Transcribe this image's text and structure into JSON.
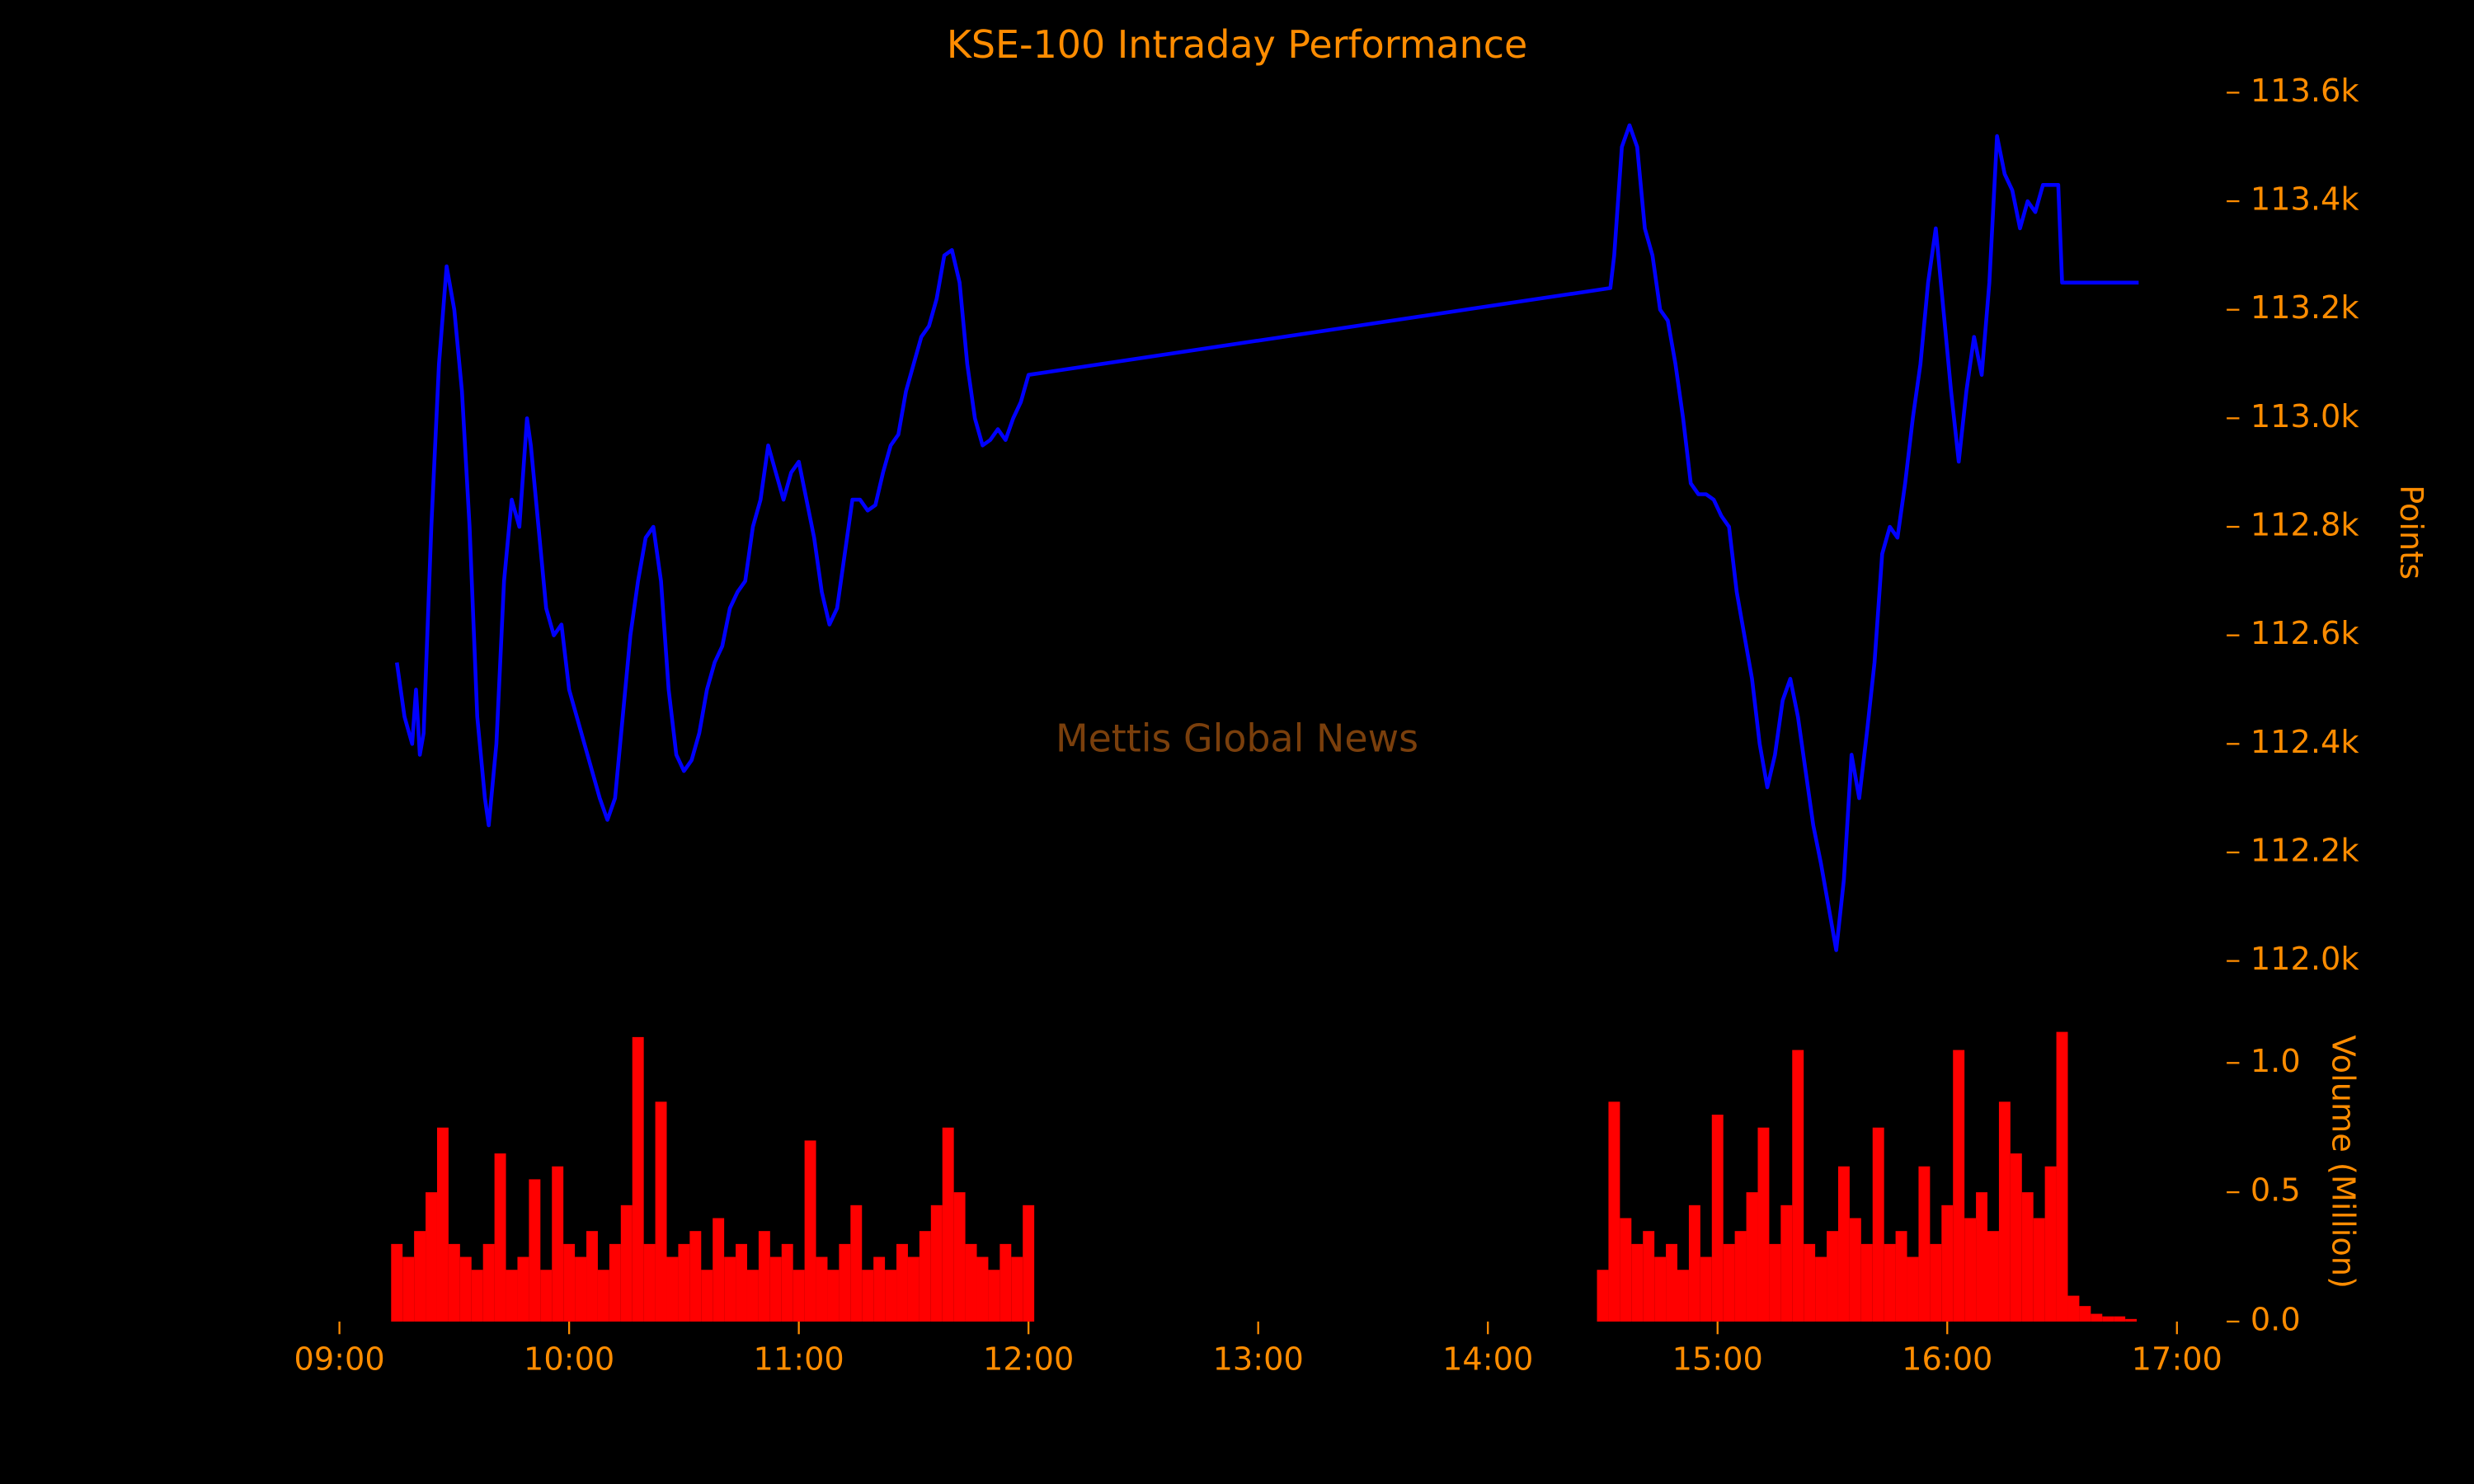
{
  "chart_data": [
    {
      "type": "line",
      "title": "KSE-100 Intraday Performance",
      "annotation": "Mettis Global News",
      "ylabel": "Points",
      "color": "#0000ff",
      "xlim": [
        "08:52",
        "17:13"
      ],
      "ylim": [
        111940,
        113640
      ],
      "yticks": [
        {
          "value": 112000,
          "label": "112.0k"
        },
        {
          "value": 112200,
          "label": "112.2k"
        },
        {
          "value": 112400,
          "label": "112.4k"
        },
        {
          "value": 112600,
          "label": "112.6k"
        },
        {
          "value": 112800,
          "label": "112.8k"
        },
        {
          "value": 113000,
          "label": "113.0k"
        },
        {
          "value": 113200,
          "label": "113.2k"
        },
        {
          "value": 113400,
          "label": "113.4k"
        },
        {
          "value": 113600,
          "label": "113.6k"
        }
      ],
      "x": [
        "09:15",
        "09:17",
        "09:19",
        "09:20",
        "09:21",
        "09:22",
        "09:24",
        "09:26",
        "09:28",
        "09:30",
        "09:32",
        "09:34",
        "09:36",
        "09:38",
        "09:39",
        "09:41",
        "09:43",
        "09:45",
        "09:47",
        "09:49",
        "09:50",
        "09:52",
        "09:54",
        "09:56",
        "09:58",
        "10:00",
        "10:02",
        "10:04",
        "10:06",
        "10:08",
        "10:10",
        "10:12",
        "10:14",
        "10:16",
        "10:18",
        "10:20",
        "10:22",
        "10:24",
        "10:26",
        "10:28",
        "10:30",
        "10:32",
        "10:34",
        "10:36",
        "10:38",
        "10:40",
        "10:42",
        "10:44",
        "10:46",
        "10:48",
        "10:50",
        "10:52",
        "10:54",
        "10:56",
        "10:58",
        "11:00",
        "11:02",
        "11:04",
        "11:06",
        "11:08",
        "11:10",
        "11:12",
        "11:14",
        "11:16",
        "11:18",
        "11:20",
        "11:22",
        "11:24",
        "11:26",
        "11:28",
        "11:30",
        "11:32",
        "11:34",
        "11:36",
        "11:38",
        "11:40",
        "11:42",
        "11:44",
        "11:46",
        "11:48",
        "11:50",
        "11:52",
        "11:54",
        "11:56",
        "11:58",
        "12:00",
        "14:32",
        "14:33",
        "14:35",
        "14:37",
        "14:39",
        "14:41",
        "14:43",
        "14:45",
        "14:47",
        "14:49",
        "14:51",
        "14:53",
        "14:55",
        "14:57",
        "14:59",
        "15:01",
        "15:03",
        "15:05",
        "15:07",
        "15:09",
        "15:11",
        "15:13",
        "15:15",
        "15:17",
        "15:19",
        "15:21",
        "15:23",
        "15:25",
        "15:27",
        "15:29",
        "15:31",
        "15:33",
        "15:35",
        "15:37",
        "15:39",
        "15:41",
        "15:43",
        "15:45",
        "15:47",
        "15:49",
        "15:51",
        "15:53",
        "15:55",
        "15:57",
        "15:59",
        "16:01",
        "16:03",
        "16:05",
        "16:07",
        "16:09",
        "16:11",
        "16:13",
        "16:15",
        "16:17",
        "16:19",
        "16:21",
        "16:23",
        "16:25",
        "16:29",
        "16:30",
        "16:50"
      ],
      "values": [
        112550,
        112450,
        112400,
        112500,
        112380,
        112420,
        112800,
        113100,
        113280,
        113200,
        113050,
        112800,
        112450,
        112300,
        112250,
        112400,
        112700,
        112850,
        112800,
        113000,
        112950,
        112800,
        112650,
        112600,
        112620,
        112500,
        112450,
        112400,
        112350,
        112300,
        112260,
        112300,
        112450,
        112600,
        112700,
        112780,
        112800,
        112700,
        112500,
        112380,
        112350,
        112370,
        112420,
        112500,
        112550,
        112580,
        112650,
        112680,
        112700,
        112800,
        112850,
        112950,
        112900,
        112850,
        112900,
        112920,
        112850,
        112780,
        112680,
        112620,
        112650,
        112750,
        112850,
        112850,
        112830,
        112840,
        112900,
        112950,
        112970,
        113050,
        113100,
        113150,
        113170,
        113220,
        113300,
        113310,
        113250,
        113100,
        113000,
        112950,
        112960,
        112980,
        112960,
        113000,
        113030,
        113080,
        113240,
        113300,
        113500,
        113540,
        113500,
        113350,
        113300,
        113200,
        113180,
        113100,
        113000,
        112880,
        112860,
        112860,
        112850,
        112820,
        112800,
        112680,
        112600,
        112520,
        112400,
        112320,
        112380,
        112480,
        112520,
        112450,
        112350,
        112250,
        112180,
        112100,
        112020,
        112150,
        112380,
        112300,
        112420,
        112550,
        112750,
        112800,
        112780,
        112880,
        113000,
        113100,
        113250,
        113350,
        113200,
        113050,
        112920,
        113050,
        113150,
        113080,
        113250,
        113520,
        113450,
        113420,
        113350,
        113400,
        113380,
        113430,
        113430,
        113250,
        113250
      ]
    },
    {
      "type": "bar",
      "ylabel": "Volume (Million)",
      "color": "#ff0000",
      "xlim": [
        "08:52",
        "17:13"
      ],
      "xticks": [
        "09:00",
        "10:00",
        "11:00",
        "12:00",
        "13:00",
        "14:00",
        "15:00",
        "16:00",
        "17:00"
      ],
      "ylim": [
        0,
        1.15
      ],
      "yticks": [
        {
          "value": 0,
          "label": "0.0"
        },
        {
          "value": 0.5,
          "label": "0.5"
        },
        {
          "value": 1,
          "label": "1.0"
        }
      ],
      "x": [
        "09:15",
        "09:18",
        "09:21",
        "09:24",
        "09:27",
        "09:30",
        "09:33",
        "09:36",
        "09:39",
        "09:42",
        "09:45",
        "09:48",
        "09:51",
        "09:54",
        "09:57",
        "10:00",
        "10:03",
        "10:06",
        "10:09",
        "10:12",
        "10:15",
        "10:18",
        "10:21",
        "10:24",
        "10:27",
        "10:30",
        "10:33",
        "10:36",
        "10:39",
        "10:42",
        "10:45",
        "10:48",
        "10:51",
        "10:54",
        "10:57",
        "11:00",
        "11:03",
        "11:06",
        "11:09",
        "11:12",
        "11:15",
        "11:18",
        "11:21",
        "11:24",
        "11:27",
        "11:30",
        "11:33",
        "11:36",
        "11:39",
        "11:42",
        "11:45",
        "11:48",
        "11:51",
        "11:54",
        "11:57",
        "12:00",
        "14:30",
        "14:33",
        "14:36",
        "14:39",
        "14:42",
        "14:45",
        "14:48",
        "14:51",
        "14:54",
        "14:57",
        "15:00",
        "15:03",
        "15:06",
        "15:09",
        "15:12",
        "15:15",
        "15:18",
        "15:21",
        "15:24",
        "15:27",
        "15:30",
        "15:33",
        "15:36",
        "15:39",
        "15:42",
        "15:45",
        "15:48",
        "15:51",
        "15:54",
        "15:57",
        "16:00",
        "16:03",
        "16:06",
        "16:09",
        "16:12",
        "16:15",
        "16:18",
        "16:21",
        "16:24",
        "16:27",
        "16:30",
        "16:33",
        "16:36",
        "16:39",
        "16:42",
        "16:45",
        "16:48"
      ],
      "values": [
        0.3,
        0.25,
        0.35,
        0.5,
        0.75,
        0.3,
        0.25,
        0.2,
        0.3,
        0.65,
        0.2,
        0.25,
        0.55,
        0.2,
        0.6,
        0.3,
        0.25,
        0.35,
        0.2,
        0.3,
        0.45,
        1.1,
        0.3,
        0.85,
        0.25,
        0.3,
        0.35,
        0.2,
        0.4,
        0.25,
        0.3,
        0.2,
        0.35,
        0.25,
        0.3,
        0.2,
        0.7,
        0.25,
        0.2,
        0.3,
        0.45,
        0.2,
        0.25,
        0.2,
        0.3,
        0.25,
        0.35,
        0.45,
        0.75,
        0.5,
        0.3,
        0.25,
        0.2,
        0.3,
        0.25,
        0.45,
        0.2,
        0.85,
        0.4,
        0.3,
        0.35,
        0.25,
        0.3,
        0.2,
        0.45,
        0.25,
        0.8,
        0.3,
        0.35,
        0.5,
        0.75,
        0.3,
        0.45,
        1.05,
        0.3,
        0.25,
        0.35,
        0.6,
        0.4,
        0.3,
        0.75,
        0.3,
        0.35,
        0.25,
        0.6,
        0.3,
        0.45,
        1.05,
        0.4,
        0.5,
        0.35,
        0.85,
        0.65,
        0.5,
        0.4,
        0.6,
        1.12,
        0.1,
        0.06,
        0.03,
        0.02,
        0.02,
        0.01
      ]
    }
  ]
}
